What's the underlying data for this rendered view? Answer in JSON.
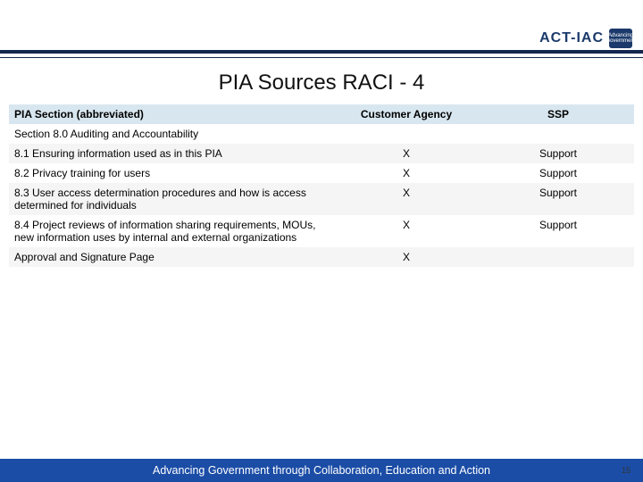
{
  "logo": {
    "brand": "ACT-IAC",
    "tagline": "Advancing Government"
  },
  "colors": {
    "rule": "#12264f",
    "footer": "#1b4da6",
    "table_header_bg": "#d8e6ef",
    "row_alt_bg": "#f5f5f5",
    "row_bg": "#ffffff",
    "text": "#000000",
    "footer_text": "#ffffff"
  },
  "title": "PIA Sources RACI - 4",
  "table": {
    "columns": [
      "PIA Section (abbreviated)",
      "Customer Agency",
      "SSP"
    ],
    "rows": [
      {
        "cells": [
          "Section 8.0 Auditing and Accountability",
          "",
          ""
        ],
        "kind": "section"
      },
      {
        "cells": [
          "8.1 Ensuring information used as in this PIA",
          "X",
          "Support"
        ],
        "kind": "data"
      },
      {
        "cells": [
          "8.2 Privacy training for users",
          "X",
          "Support"
        ],
        "kind": "data"
      },
      {
        "cells": [
          "8.3 User access determination procedures and how is access determined for individuals",
          "X",
          "Support"
        ],
        "kind": "data"
      },
      {
        "cells": [
          "8.4 Project reviews of information sharing requirements, MOUs, new information uses by internal and external organizations",
          "X",
          "Support"
        ],
        "kind": "data"
      },
      {
        "cells": [
          "Approval and Signature Page",
          "X",
          ""
        ],
        "kind": "data"
      }
    ]
  },
  "footer": "Advancing Government through Collaboration, Education and Action",
  "page_number": "15"
}
